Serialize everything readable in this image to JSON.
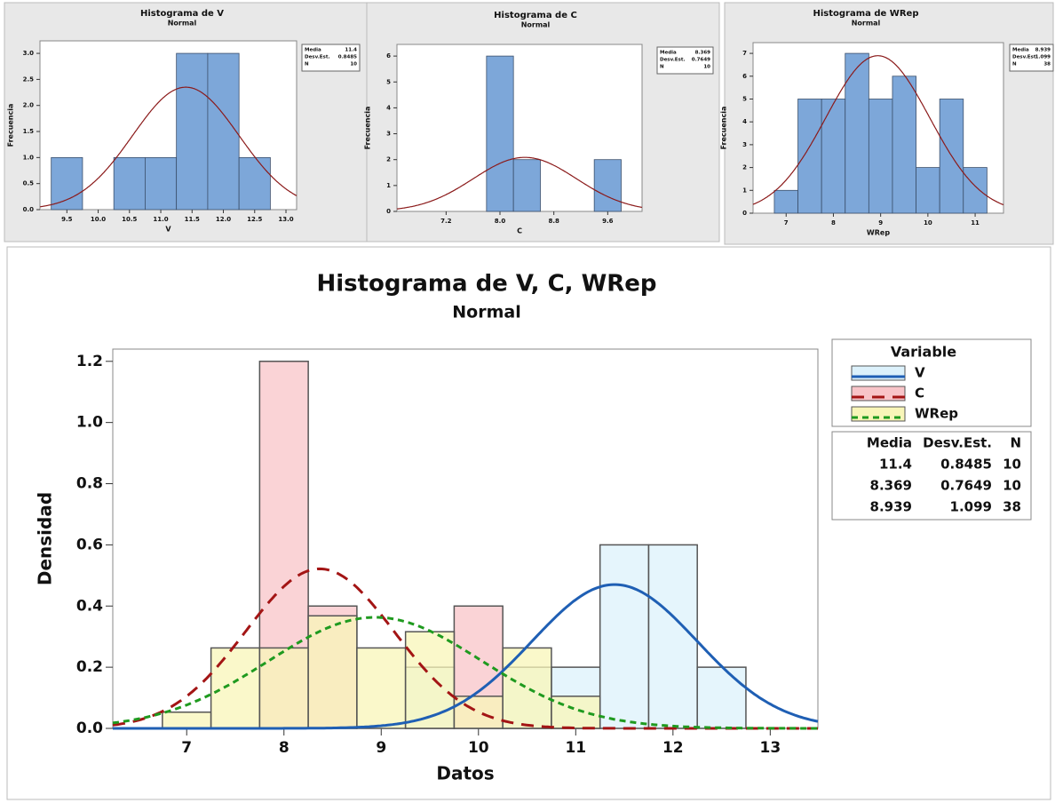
{
  "chart_data": [
    {
      "type": "histogram",
      "title": "Histograma de V",
      "subtitle": "Normal",
      "xlabel": "V",
      "ylabel": "Frecuencia",
      "bins": [
        9.25,
        9.75,
        10.25,
        10.75,
        11.25,
        11.75,
        12.25,
        12.75
      ],
      "values": [
        1,
        0,
        1,
        1,
        3,
        3,
        1
      ],
      "color": "#7da7d9",
      "curve_color": "#8b1a1a",
      "mean": 11.4,
      "sd": 0.8485,
      "n": 10,
      "stats_labels": [
        "Media",
        "Desv.Est.",
        "N"
      ],
      "xlim": [
        9.07,
        13.17
      ],
      "xticks": [
        9.5,
        {
          "value": 10,
          "label": "10.0"
        },
        10.5,
        {
          "value": 11,
          "label": "11.0"
        },
        11.5,
        {
          "value": 12,
          "label": "12.0"
        },
        12.5,
        {
          "value": 13,
          "label": "13.0"
        }
      ],
      "ylim": [
        0,
        3.24
      ],
      "yticks": [
        {
          "value": 0,
          "label": "0.0"
        },
        0.5,
        {
          "value": 1,
          "label": "1.0"
        },
        1.5,
        {
          "value": 2,
          "label": "2.0"
        },
        2.5,
        {
          "value": 3,
          "label": "3.0"
        }
      ]
    },
    {
      "type": "histogram",
      "title": "Histograma de C",
      "subtitle": "Normal",
      "xlabel": "C",
      "ylabel": "Frecuencia",
      "bins": [
        7.8,
        8.2,
        8.6,
        9.0,
        9.4,
        9.8
      ],
      "values": [
        6,
        2,
        0,
        0,
        2
      ],
      "color": "#7da7d9",
      "curve_color": "#8b1a1a",
      "mean": 8.369,
      "sd": 0.7649,
      "n": 10,
      "stats_labels": [
        "Media",
        "Desv.Est.",
        "N"
      ],
      "xlim": [
        6.47,
        10.11
      ],
      "xticks": [
        7.2,
        {
          "value": 8,
          "label": "8.0"
        },
        8.8,
        9.6
      ],
      "ylim": [
        0,
        6.45
      ],
      "yticks": [
        0,
        1,
        2,
        3,
        4,
        5,
        6
      ]
    },
    {
      "type": "histogram",
      "title": "Histograma de WRep",
      "subtitle": "Normal",
      "xlabel": "WRep",
      "ylabel": "Frecuencia",
      "bins": [
        6.75,
        7.25,
        7.75,
        8.25,
        8.75,
        9.25,
        9.75,
        10.25,
        10.75,
        11.25
      ],
      "values": [
        1,
        5,
        5,
        7,
        5,
        6,
        2,
        5,
        2
      ],
      "color": "#7da7d9",
      "curve_color": "#8b1a1a",
      "mean": 8.939,
      "sd": 1.099,
      "n": 38,
      "stats_labels": [
        "Media",
        "Desv.Est.",
        "N"
      ],
      "xlim": [
        6.3,
        11.6
      ],
      "xticks": [
        7,
        8,
        9,
        10,
        11
      ],
      "ylim": [
        0,
        7.47
      ],
      "yticks": [
        0,
        1,
        2,
        3,
        4,
        5,
        6,
        7
      ]
    },
    {
      "type": "histogram",
      "title": "Histograma de V, C, WRep",
      "subtitle": "Normal",
      "xlabel": "Datos",
      "ylabel": "Densidad",
      "legend_title": "Variable",
      "stats_labels": [
        "Media",
        "Desv.Est.",
        "N"
      ],
      "series": [
        {
          "name": "V",
          "color": "#dcf1fb",
          "curve_color": "#1f5fb4",
          "mean": 11.4,
          "sd": 0.8485,
          "n": 10,
          "bins": [
            9.25,
            9.75,
            10.25,
            10.75,
            11.25,
            11.75,
            12.25,
            12.75
          ],
          "values": [
            0.2,
            0,
            0.2,
            0.2,
            0.6,
            0.6,
            0.2
          ]
        },
        {
          "name": "C",
          "color": "#f8c4c8",
          "curve_color": "#a31515",
          "mean": 8.369,
          "sd": 0.7649,
          "n": 10,
          "bins": [
            7.75,
            8.25,
            8.75,
            9.25,
            9.75,
            10.25
          ],
          "values": [
            1.2,
            0.4,
            0,
            0,
            0.4
          ]
        },
        {
          "name": "WRep",
          "color": "#f8f5b8",
          "curve_color": "#1f9a1f",
          "mean": 8.939,
          "sd": 1.099,
          "n": 38,
          "bins": [
            6.75,
            7.25,
            7.75,
            8.25,
            8.75,
            9.25,
            9.75,
            10.25,
            10.75,
            11.25
          ],
          "values": [
            0.053,
            0.263,
            0.263,
            0.368,
            0.263,
            0.316,
            0.105,
            0.263,
            0.105
          ]
        }
      ],
      "xlim": [
        6.24,
        13.49
      ],
      "xticks": [
        7,
        8,
        9,
        10,
        11,
        12,
        13
      ],
      "ylim": [
        0,
        1.24
      ],
      "yticks": [
        {
          "value": 0,
          "label": "0.0"
        },
        0.2,
        0.4,
        0.6,
        0.8,
        {
          "value": 1,
          "label": "1.0"
        },
        1.2
      ]
    }
  ]
}
